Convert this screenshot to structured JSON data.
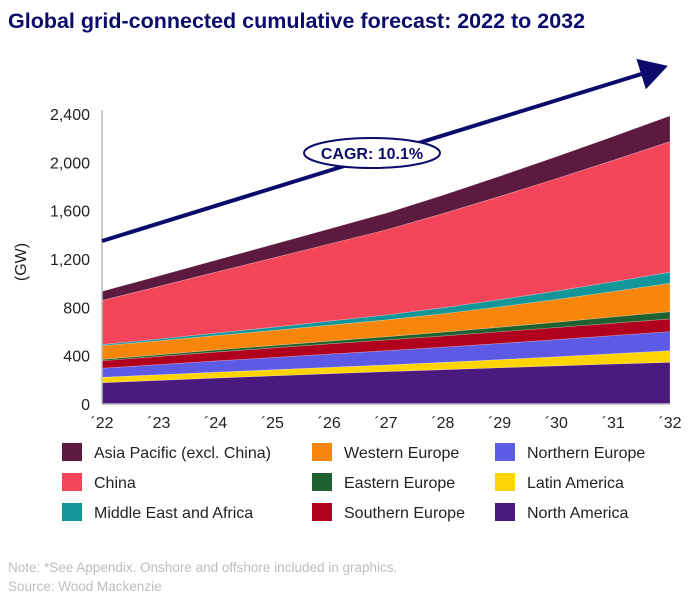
{
  "chart_data": {
    "type": "area",
    "stacked": true,
    "title": "Global grid-connected cumulative forecast: 2022 to 2032",
    "ylabel": "(GW)",
    "xlabel": "",
    "categories": [
      "´22",
      "´23",
      "´24",
      "´25",
      "´26",
      "´27",
      "´28",
      "´29",
      "´30",
      "´31",
      "´32"
    ],
    "ylim": [
      0,
      2400
    ],
    "yticks": [
      "0",
      "400",
      "800",
      "1,200",
      "1,600",
      "2,000",
      "2,400"
    ],
    "ytick_values": [
      0,
      400,
      800,
      1200,
      1600,
      2000,
      2400
    ],
    "grid": false,
    "legend_position": "bottom",
    "series": [
      {
        "name": "North America",
        "color": "#4b1a7f",
        "values": [
          176,
          196,
          215,
          233,
          251,
          268,
          284,
          300,
          316,
          331,
          345
        ]
      },
      {
        "name": "Latin America",
        "color": "#ffd400",
        "values": [
          45,
          46,
          48,
          50,
          52,
          55,
          60,
          67,
          75,
          85,
          96
        ]
      },
      {
        "name": "Northern Europe",
        "color": "#5d5be6",
        "values": [
          75,
          84,
          93,
          101,
          110,
          118,
          126,
          134,
          142,
          150,
          158
        ]
      },
      {
        "name": "Southern Europe",
        "color": "#b0001e",
        "values": [
          62,
          68,
          74,
          80,
          85,
          89,
          93,
          97,
          100,
          103,
          105
        ]
      },
      {
        "name": "Eastern Europe",
        "color": "#1f6130",
        "values": [
          12,
          14,
          17,
          20,
          23,
          27,
          32,
          38,
          44,
          52,
          60
        ]
      },
      {
        "name": "Western Europe",
        "color": "#f7860a",
        "values": [
          112,
          115,
          119,
          124,
          131,
          139,
          152,
          168,
          188,
          210,
          235
        ]
      },
      {
        "name": "Middle East and Africa",
        "color": "#12969a",
        "values": [
          10,
          15,
          21,
          27,
          34,
          41,
          50,
          60,
          70,
          81,
          92
        ]
      },
      {
        "name": "China",
        "color": "#f5455a",
        "values": [
          365,
          435,
          504,
          572,
          638,
          704,
          779,
          854,
          930,
          1005,
          1081
        ]
      },
      {
        "name": "Asia Pacific (excl. China)",
        "color": "#5c1a3e",
        "values": [
          75,
          87,
          99,
          112,
          125,
          138,
          152,
          167,
          182,
          197,
          213
        ]
      }
    ],
    "legend_order": [
      "Asia Pacific (excl. China)",
      "Western Europe",
      "Northern Europe",
      "China",
      "Eastern Europe",
      "Latin America",
      "Middle East and Africa",
      "Southern Europe",
      "North America"
    ],
    "annotation": "CAGR: 10.1%",
    "annotation_color": "#0b0b6b"
  },
  "notes": {
    "note": "Note: *See Appendix. Onshore and offshore included in graphics.",
    "source": "Source: Wood Mackenzie"
  }
}
